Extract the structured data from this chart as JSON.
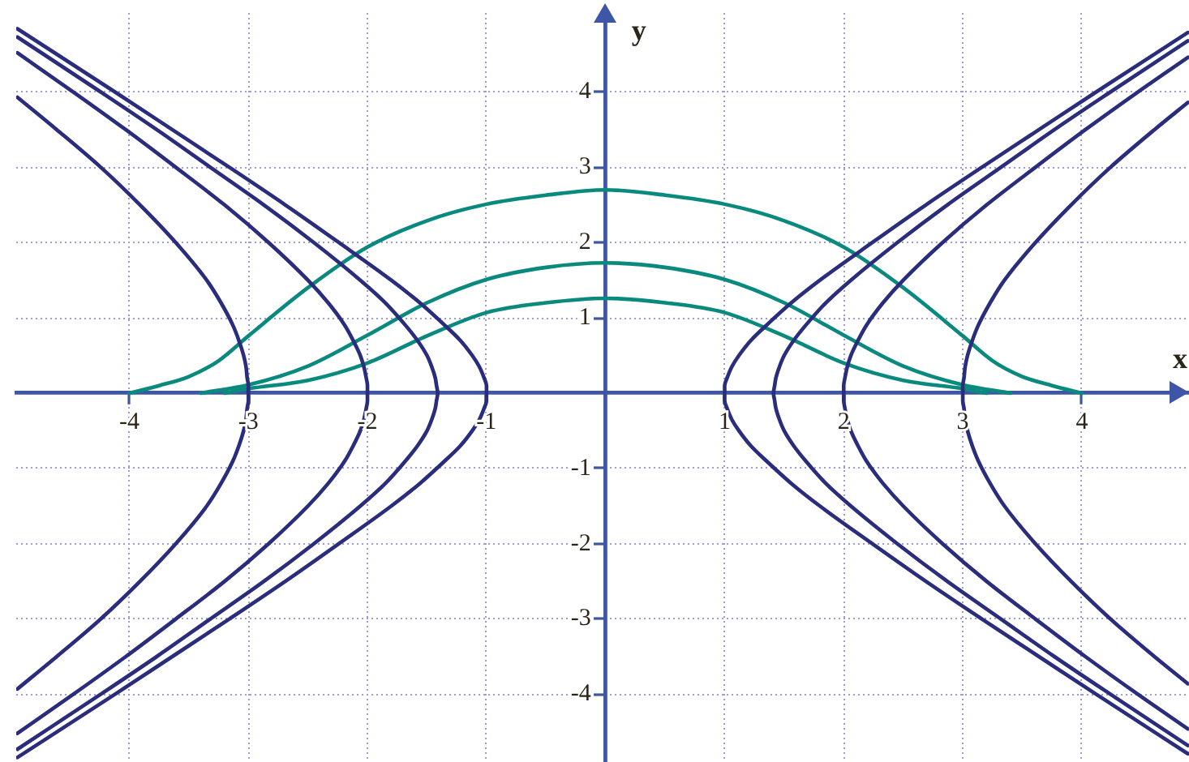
{
  "chart_data": {
    "type": "line",
    "xlabel": "x",
    "ylabel": "y",
    "xlim": [
      -4.95,
      4.9
    ],
    "ylim": [
      -4.9,
      5.05
    ],
    "xticks": [
      -4,
      -3,
      -2,
      -1,
      1,
      2,
      3,
      4
    ],
    "yticks": [
      -4,
      -3,
      -2,
      -1,
      1,
      2,
      3,
      4
    ],
    "grid": true,
    "marker": "none",
    "series": [
      {
        "color": "#2a2d7c",
        "x": [
          4.89,
          4.12,
          3.64,
          3.16,
          2.69,
          2.24,
          1.8,
          1.56,
          1.35,
          1.22,
          1.12,
          1.06,
          1.02,
          1,
          1,
          1,
          1.02,
          1.06,
          1.12,
          1.22,
          1.35,
          1.56,
          1.8,
          2.24,
          2.69,
          3.16,
          3.64,
          4.12,
          4.89
        ],
        "values": [
          -4.79,
          -4,
          -3.5,
          -3,
          -2.5,
          -2,
          -1.5,
          -1.2,
          -0.9,
          -0.7,
          -0.5,
          -0.35,
          -0.2,
          -0.1,
          0,
          0.1,
          0.2,
          0.35,
          0.5,
          0.7,
          0.9,
          1.2,
          1.5,
          2,
          2.5,
          3,
          3.5,
          4,
          4.79
        ]
      },
      {
        "color": "#2a2d7c",
        "x": [
          -4.94,
          -4.12,
          -3.64,
          -3.16,
          -2.69,
          -2.24,
          -1.8,
          -1.56,
          -1.35,
          -1.22,
          -1.12,
          -1.06,
          -1.02,
          -1,
          -1,
          -1,
          -1.02,
          -1.06,
          -1.12,
          -1.22,
          -1.35,
          -1.56,
          -1.8,
          -2.24,
          -2.69,
          -3.16,
          -3.64,
          -4.12,
          -4.94
        ],
        "values": [
          -4.84,
          -4,
          -3.5,
          -3,
          -2.5,
          -2,
          -1.5,
          -1.2,
          -0.9,
          -0.7,
          -0.5,
          -0.35,
          -0.2,
          -0.1,
          0,
          0.1,
          0.2,
          0.35,
          0.5,
          0.7,
          0.9,
          1.2,
          1.5,
          2,
          2.5,
          3,
          3.5,
          4,
          4.84
        ]
      },
      {
        "color": "#2a2d7c",
        "x": [
          4.89,
          4.24,
          3.77,
          3.32,
          2.87,
          2.45,
          2.06,
          1.85,
          1.68,
          1.58,
          1.5,
          1.46,
          1.43,
          1.42,
          1.41,
          1.42,
          1.43,
          1.46,
          1.5,
          1.58,
          1.68,
          1.85,
          2.06,
          2.45,
          2.87,
          3.32,
          3.77,
          4.24,
          4.89
        ],
        "values": [
          -4.68,
          -4,
          -3.5,
          -3,
          -2.5,
          -2,
          -1.5,
          -1.2,
          -0.9,
          -0.7,
          -0.5,
          -0.35,
          -0.2,
          -0.1,
          0,
          0.1,
          0.2,
          0.35,
          0.5,
          0.7,
          0.9,
          1.2,
          1.5,
          2,
          2.5,
          3,
          3.5,
          4,
          4.68
        ]
      },
      {
        "color": "#2a2d7c",
        "x": [
          -4.94,
          -4.24,
          -3.77,
          -3.32,
          -2.87,
          -2.45,
          -2.06,
          -1.85,
          -1.68,
          -1.58,
          -1.5,
          -1.46,
          -1.43,
          -1.42,
          -1.41,
          -1.42,
          -1.43,
          -1.46,
          -1.5,
          -1.58,
          -1.68,
          -1.85,
          -2.06,
          -2.45,
          -2.87,
          -3.32,
          -3.77,
          -4.24,
          -4.94
        ],
        "values": [
          -4.73,
          -4,
          -3.5,
          -3,
          -2.5,
          -2,
          -1.5,
          -1.2,
          -0.9,
          -0.7,
          -0.5,
          -0.35,
          -0.2,
          -0.1,
          0,
          0.1,
          0.2,
          0.35,
          0.5,
          0.7,
          0.9,
          1.2,
          1.5,
          2,
          2.5,
          3,
          3.5,
          4,
          4.73
        ]
      },
      {
        "color": "#2a2d7c",
        "x": [
          4.89,
          4.47,
          4.03,
          3.61,
          3.2,
          2.83,
          2.5,
          2.33,
          2.19,
          2.12,
          2.06,
          2.03,
          2.01,
          2,
          2,
          2,
          2.01,
          2.03,
          2.06,
          2.12,
          2.19,
          2.33,
          2.5,
          2.83,
          3.2,
          3.61,
          4.03,
          4.47,
          4.89
        ],
        "values": [
          -4.46,
          -4,
          -3.5,
          -3,
          -2.5,
          -2,
          -1.5,
          -1.2,
          -0.9,
          -0.7,
          -0.5,
          -0.35,
          -0.2,
          -0.1,
          0,
          0.1,
          0.2,
          0.35,
          0.5,
          0.7,
          0.9,
          1.2,
          1.5,
          2,
          2.5,
          3,
          3.5,
          4,
          4.46
        ]
      },
      {
        "color": "#2a2d7c",
        "x": [
          -4.94,
          -4.47,
          -4.03,
          -3.61,
          -3.2,
          -2.83,
          -2.5,
          -2.33,
          -2.19,
          -2.12,
          -2.06,
          -2.03,
          -2.01,
          -2,
          -2,
          -2,
          -2.01,
          -2.03,
          -2.06,
          -2.12,
          -2.19,
          -2.33,
          -2.5,
          -2.83,
          -3.2,
          -3.61,
          -4.03,
          -4.47,
          -4.94
        ],
        "values": [
          -4.52,
          -4,
          -3.5,
          -3,
          -2.5,
          -2,
          -1.5,
          -1.2,
          -0.9,
          -0.7,
          -0.5,
          -0.35,
          -0.2,
          -0.1,
          0,
          0.1,
          0.2,
          0.35,
          0.5,
          0.7,
          0.9,
          1.2,
          1.5,
          2,
          2.5,
          3,
          3.5,
          4,
          4.52
        ]
      },
      {
        "color": "#2a2d7c",
        "x": [
          4.89,
          4.61,
          4.24,
          3.91,
          3.61,
          3.35,
          3.23,
          3.13,
          3.08,
          3.04,
          3.02,
          3.01,
          3,
          3,
          3,
          3.01,
          3.02,
          3.04,
          3.08,
          3.13,
          3.23,
          3.35,
          3.61,
          3.91,
          4.24,
          4.61,
          4.89
        ],
        "values": [
          -3.86,
          -3.5,
          -3,
          -2.5,
          -2,
          -1.5,
          -1.2,
          -0.9,
          -0.7,
          -0.5,
          -0.35,
          -0.2,
          -0.1,
          0,
          0.1,
          0.2,
          0.35,
          0.5,
          0.7,
          0.9,
          1.2,
          1.5,
          2,
          2.5,
          3,
          3.5,
          3.86
        ]
      },
      {
        "color": "#2a2d7c",
        "x": [
          -4.94,
          -4.61,
          -4.24,
          -3.91,
          -3.61,
          -3.35,
          -3.23,
          -3.13,
          -3.08,
          -3.04,
          -3.02,
          -3.01,
          -3,
          -3,
          -3,
          -3.01,
          -3.02,
          -3.04,
          -3.08,
          -3.13,
          -3.23,
          -3.35,
          -3.61,
          -3.91,
          -4.24,
          -4.61,
          -4.94
        ],
        "values": [
          -3.93,
          -3.5,
          -3,
          -2.5,
          -2,
          -1.5,
          -1.2,
          -0.9,
          -0.7,
          -0.5,
          -0.35,
          -0.2,
          -0.1,
          0,
          0.1,
          0.2,
          0.35,
          0.5,
          0.7,
          0.9,
          1.2,
          1.5,
          2,
          2.5,
          3,
          3.5,
          3.93
        ]
      },
      {
        "color": "#0a8a7e",
        "x": [
          -4,
          -3.75,
          -3.5,
          -3.25,
          -3,
          -2.5,
          -2,
          -1.5,
          -1,
          -0.5,
          0,
          0.5,
          1,
          1.5,
          2,
          2.5,
          3,
          3.25,
          3.5,
          3.75,
          4
        ],
        "values": [
          0,
          0.1,
          0.22,
          0.43,
          0.76,
          1.4,
          1.94,
          2.29,
          2.51,
          2.63,
          2.7,
          2.63,
          2.51,
          2.29,
          1.94,
          1.4,
          0.76,
          0.43,
          0.22,
          0.1,
          0
        ]
      },
      {
        "color": "#0a8a7e",
        "x": [
          -3.4,
          -3,
          -2.5,
          -2,
          -1.5,
          -1,
          -0.5,
          0,
          0.5,
          1,
          1.5,
          2,
          2.5,
          3,
          3.4
        ],
        "values": [
          0,
          0.11,
          0.36,
          0.77,
          1.2,
          1.51,
          1.67,
          1.73,
          1.67,
          1.51,
          1.2,
          0.77,
          0.36,
          0.11,
          0
        ]
      },
      {
        "color": "#0a8a7e",
        "x": [
          -3.2,
          -3,
          -2.5,
          -2,
          -1.5,
          -1,
          -0.5,
          0,
          0.5,
          1,
          1.5,
          2,
          2.5,
          3,
          3.2
        ],
        "values": [
          0,
          0.06,
          0.17,
          0.4,
          0.76,
          1.07,
          1.2,
          1.26,
          1.2,
          1.07,
          0.76,
          0.4,
          0.17,
          0.06,
          0
        ]
      }
    ]
  }
}
